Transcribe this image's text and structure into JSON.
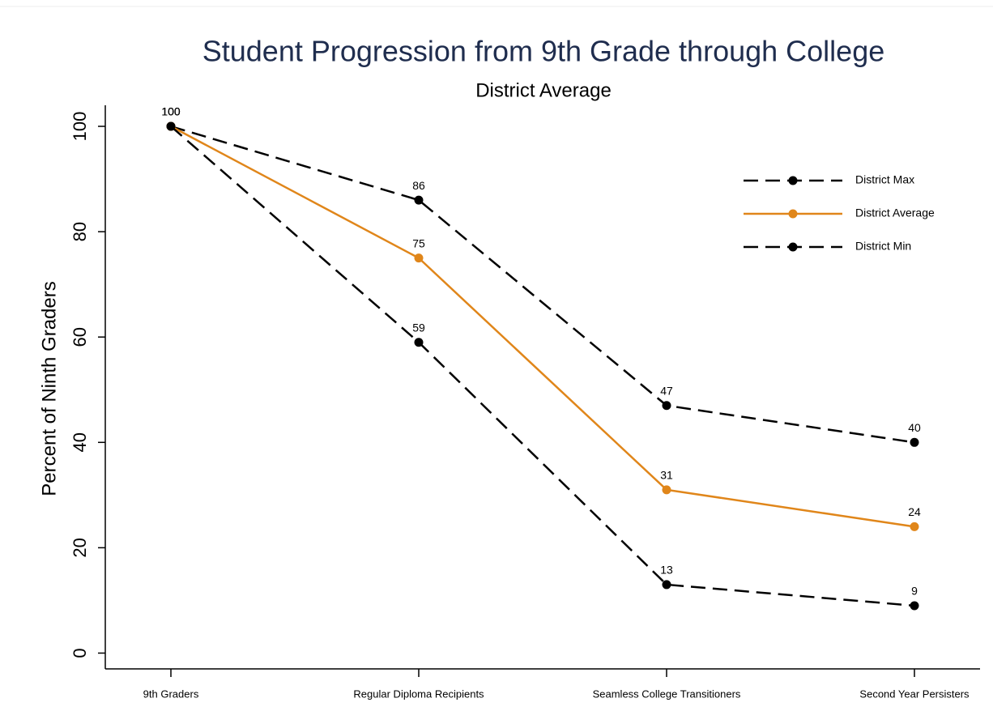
{
  "chart_data": {
    "type": "line",
    "title": "Student Progression from 9th Grade through College",
    "subtitle": "District Average",
    "y_label": "Percent of Ninth Graders",
    "categories": [
      "9th Graders",
      "Regular Diploma Recipients",
      "Seamless College Transitioners",
      "Second Year Persisters"
    ],
    "series": [
      {
        "name": "District Max",
        "color": "#000000",
        "line_style": "dashed",
        "values": [
          100,
          86,
          47,
          40
        ]
      },
      {
        "name": "District Average",
        "color": "#e0861a",
        "line_style": "solid",
        "values": [
          100,
          75,
          31,
          24
        ]
      },
      {
        "name": "District Min",
        "color": "#000000",
        "line_style": "dashed",
        "values": [
          100,
          59,
          13,
          9
        ]
      }
    ],
    "ylim": [
      -3,
      104
    ],
    "yticks": [
      0,
      20,
      40,
      60,
      80,
      100
    ],
    "grid": false,
    "legend": "upper right"
  }
}
